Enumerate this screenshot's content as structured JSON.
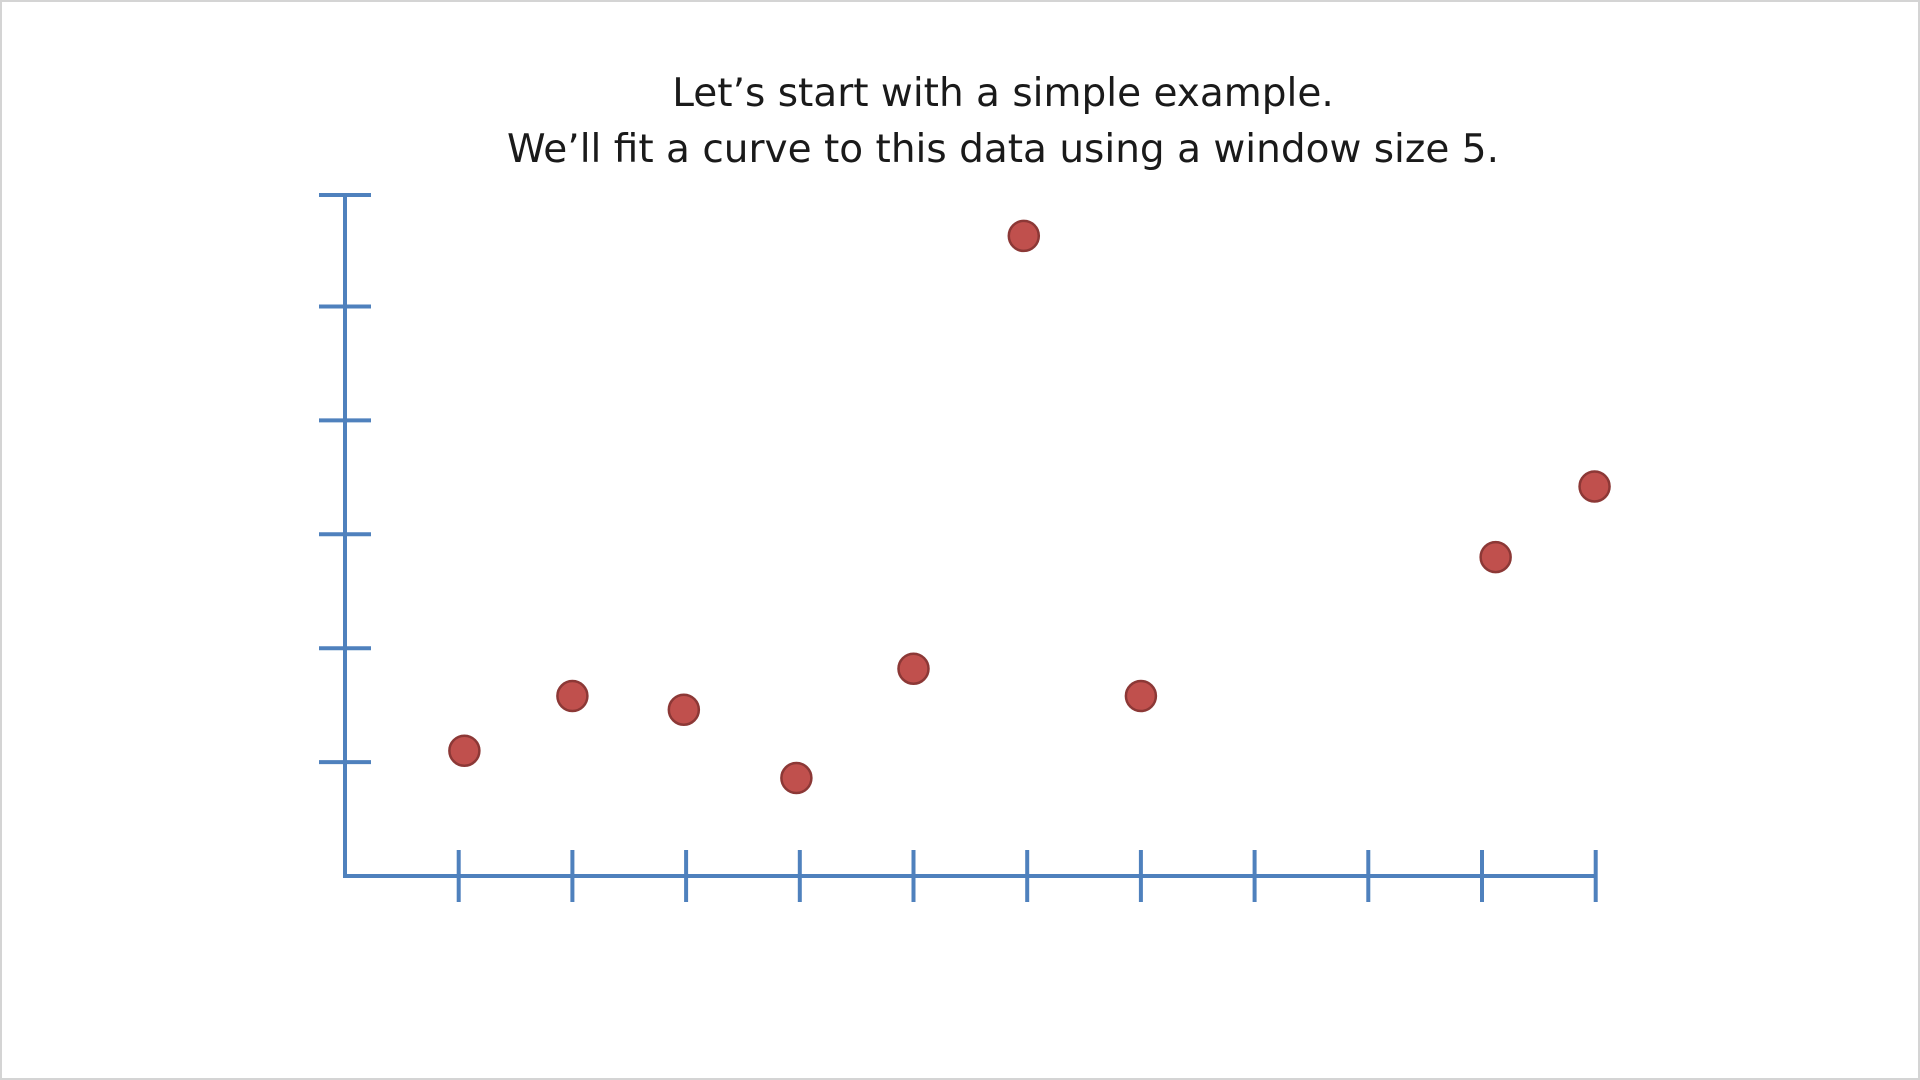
{
  "slide": {
    "caption_line1": "Let’s start with a simple example.",
    "caption_line2": "We’ll fit a curve to this data using a window size 5."
  },
  "colors": {
    "axis": "#4f81bd",
    "point_fill": "#c0504d",
    "point_stroke": "#8c3836",
    "background": "#ffffff"
  },
  "chart_data": {
    "type": "scatter",
    "title": "",
    "xlabel": "",
    "ylabel": "",
    "xlim": [
      0,
      11
    ],
    "ylim": [
      0,
      6
    ],
    "x_ticks": [
      1,
      2,
      3,
      4,
      5,
      6,
      7,
      8,
      9,
      10,
      11
    ],
    "y_ticks": [
      1,
      2,
      3,
      4,
      5,
      6
    ],
    "tick_labels_shown": false,
    "grid": false,
    "legend": "none",
    "points": [
      {
        "x": 1.05,
        "y": 1.1
      },
      {
        "x": 2.0,
        "y": 1.58
      },
      {
        "x": 2.98,
        "y": 1.46
      },
      {
        "x": 3.97,
        "y": 0.86
      },
      {
        "x": 5.0,
        "y": 1.82
      },
      {
        "x": 5.97,
        "y": 5.62
      },
      {
        "x": 7.0,
        "y": 1.58
      },
      {
        "x": 10.12,
        "y": 2.8
      },
      {
        "x": 10.99,
        "y": 3.42
      }
    ]
  }
}
